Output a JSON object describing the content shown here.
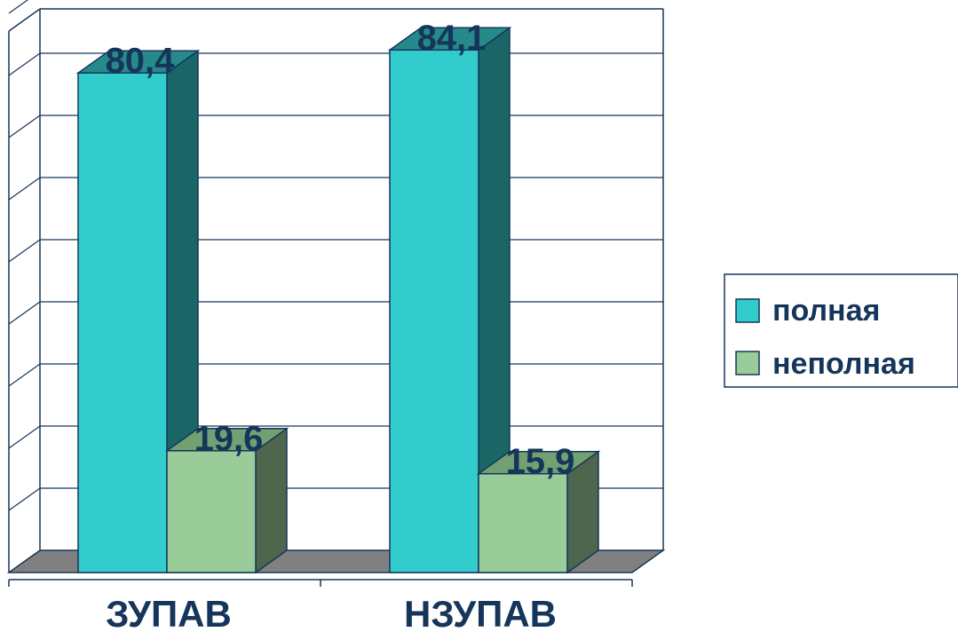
{
  "chart_data": {
    "type": "bar",
    "categories": [
      "ЗУПАВ",
      "НЗУПАВ"
    ],
    "series": [
      {
        "name": "полная",
        "values": [
          80.4,
          84.1
        ]
      },
      {
        "name": "неполная",
        "values": [
          19.6,
          15.9
        ]
      }
    ],
    "data_labels": [
      [
        "80,4",
        "84,1"
      ],
      [
        "19,6",
        "15,9"
      ]
    ],
    "ylim": [
      0,
      90
    ],
    "grid": true,
    "legend_position": "right",
    "three_d": true
  },
  "colors": {
    "series": [
      {
        "front": "#33cccc",
        "side": "#1a6666",
        "top": "#268a8a"
      },
      {
        "front": "#99cc99",
        "side": "#4d664d",
        "top": "#73a073"
      }
    ],
    "floor": "#808080",
    "axis": "#15365a",
    "text": "#15365a"
  }
}
